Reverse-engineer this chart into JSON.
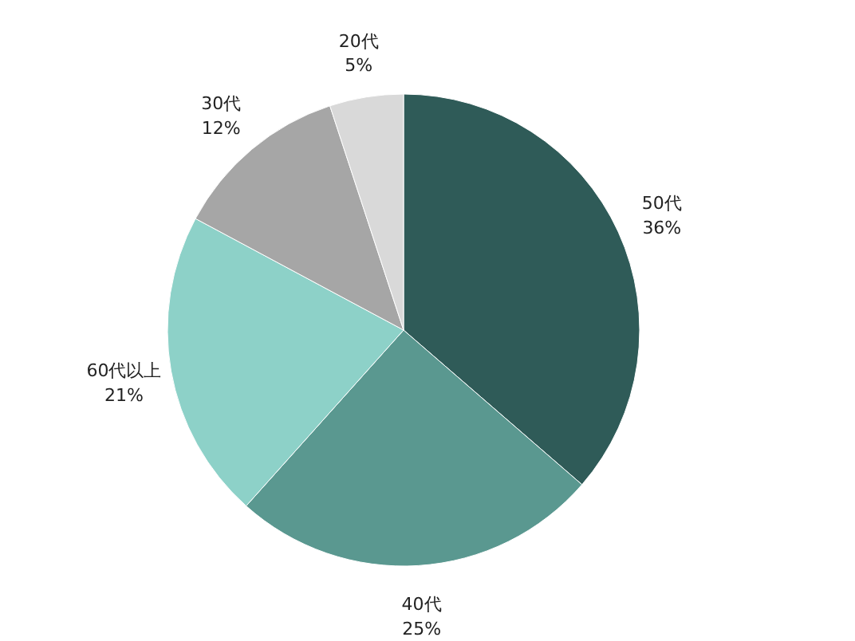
{
  "chart_data": {
    "type": "pie",
    "categories": [
      "50代",
      "40代",
      "60代以上",
      "30代",
      "20代"
    ],
    "values": [
      36,
      25,
      21,
      12,
      5
    ],
    "value_labels": [
      "36%",
      "25%",
      "21%",
      "12%",
      "5%"
    ],
    "colors": [
      "#2f5b58",
      "#5a9890",
      "#8dd1c8",
      "#a6a6a6",
      "#d9d9d9"
    ]
  }
}
